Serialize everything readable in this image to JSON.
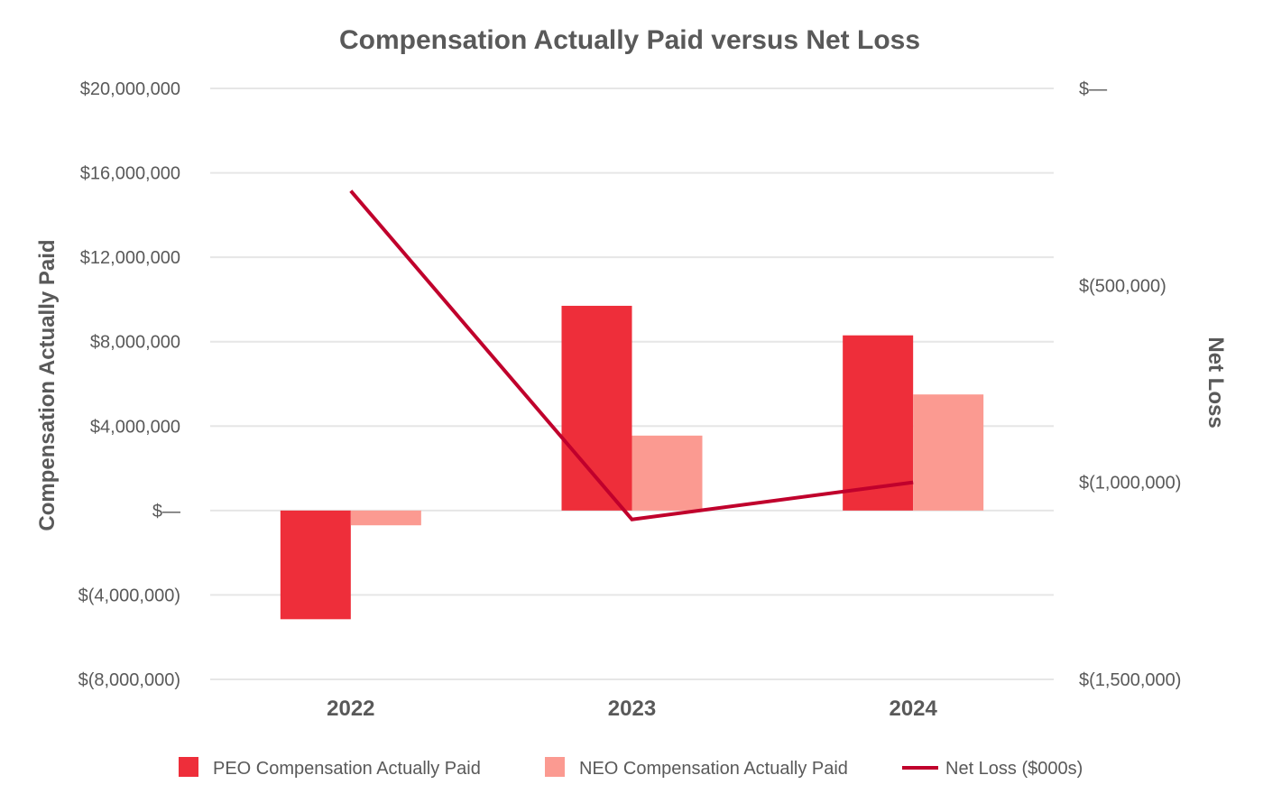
{
  "chart_data": {
    "type": "bar",
    "title": "Compensation Actually Paid versus Net Loss",
    "categories": [
      "2022",
      "2023",
      "2024"
    ],
    "ylabel": "Compensation Actually Paid",
    "y2label": "Net Loss",
    "ylim": [
      -8000000,
      20000000
    ],
    "y_ticks": [
      {
        "value": 20000000,
        "label": "$20,000,000"
      },
      {
        "value": 16000000,
        "label": "$16,000,000"
      },
      {
        "value": 12000000,
        "label": "$12,000,000"
      },
      {
        "value": 8000000,
        "label": "$8,000,000"
      },
      {
        "value": 4000000,
        "label": "$4,000,000"
      },
      {
        "value": 0,
        "label": "$—"
      },
      {
        "value": -4000000,
        "label": "$(4,000,000)"
      },
      {
        "value": -8000000,
        "label": "$(8,000,000)"
      }
    ],
    "y2lim": [
      -1500000,
      0
    ],
    "y2_ticks": [
      {
        "value": 0,
        "label": "$—"
      },
      {
        "value": -500000,
        "label": "$(500,000)"
      },
      {
        "value": -1000000,
        "label": "$(1,000,000)"
      },
      {
        "value": -1500000,
        "label": "$(1,500,000)"
      }
    ],
    "grid": true,
    "legend_position": "bottom",
    "series": [
      {
        "name": "PEO Compensation Actually Paid",
        "kind": "bar",
        "axis": "left",
        "color": "#ee2e3a",
        "values": [
          -5150000,
          9700000,
          8300000
        ]
      },
      {
        "name": "NEO Compensation Actually Paid",
        "kind": "bar",
        "axis": "left",
        "color": "#fb9a91",
        "values": [
          -700000,
          3550000,
          5500000
        ]
      },
      {
        "name": "Net Loss ($000s)",
        "kind": "line",
        "axis": "right",
        "color": "#c0002c",
        "values": [
          -260000,
          -1094000,
          -1000000
        ]
      }
    ]
  }
}
